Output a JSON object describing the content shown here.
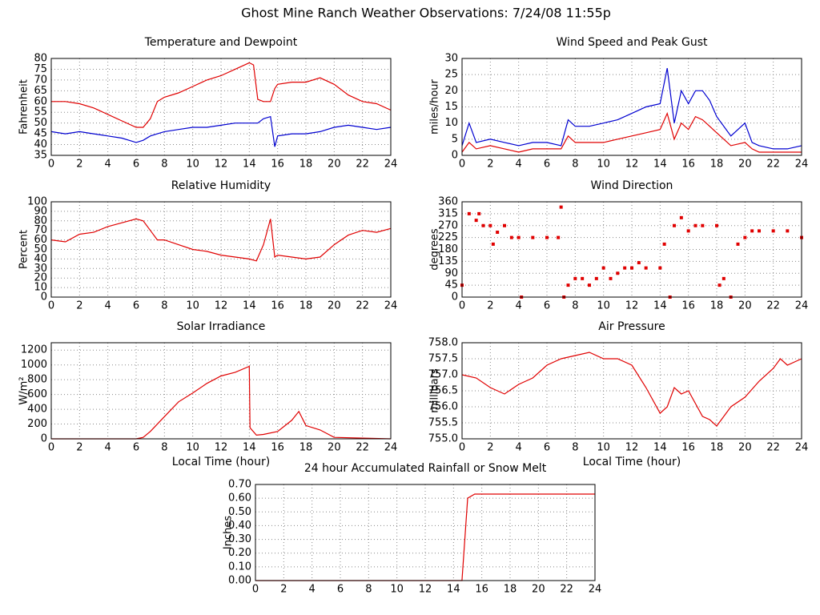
{
  "title": "Ghost Mine Ranch Weather Observations: 7/24/08 11:55p",
  "chart_data": [
    {
      "type": "line",
      "title": "Temperature and Dewpoint",
      "ylabel": "Fahrenheit",
      "x": [
        0,
        1,
        2,
        3,
        4,
        5,
        6,
        6.5,
        7,
        7.5,
        8,
        9,
        10,
        11,
        12,
        13,
        14,
        14.3,
        14.6,
        15,
        15.5,
        15.8,
        16,
        17,
        18,
        19,
        20,
        21,
        22,
        23,
        24
      ],
      "series": [
        {
          "color": "#e00000",
          "values": [
            60,
            60,
            59,
            57,
            54,
            51,
            48,
            48,
            52,
            60,
            62,
            64,
            67,
            70,
            72,
            75,
            78,
            77,
            61,
            60,
            60,
            66,
            68,
            69,
            69,
            71,
            68,
            63,
            60,
            59,
            56
          ]
        },
        {
          "color": "#0000d0",
          "values": [
            46,
            45,
            46,
            45,
            44,
            43,
            41,
            42,
            44,
            45,
            46,
            47,
            48,
            48,
            49,
            50,
            50,
            50,
            50,
            52,
            53,
            39,
            44,
            45,
            45,
            46,
            48,
            49,
            48,
            47,
            48
          ]
        }
      ],
      "xlim": [
        0,
        24
      ],
      "xticks": [
        0,
        2,
        4,
        6,
        8,
        10,
        12,
        14,
        16,
        18,
        20,
        22,
        24
      ],
      "ylim": [
        35,
        80
      ],
      "yticks": [
        35,
        40,
        45,
        50,
        55,
        60,
        65,
        70,
        75,
        80
      ],
      "grid": true
    },
    {
      "type": "line",
      "title": "Wind Speed and Peak Gust",
      "ylabel": "miles/hour",
      "x": [
        0,
        0.5,
        1,
        2,
        3,
        4,
        5,
        6,
        7,
        7.5,
        8,
        9,
        10,
        11,
        12,
        13,
        14,
        14.5,
        15,
        15.5,
        16,
        16.5,
        17,
        17.5,
        18,
        19,
        20,
        20.5,
        21,
        22,
        23,
        24
      ],
      "series": [
        {
          "color": "#0000d0",
          "values": [
            3,
            10,
            4,
            5,
            4,
            3,
            4,
            4,
            3,
            11,
            9,
            9,
            10,
            11,
            13,
            15,
            16,
            27,
            10,
            20,
            16,
            20,
            20,
            17,
            12,
            6,
            10,
            4,
            3,
            2,
            2,
            3
          ]
        },
        {
          "color": "#e00000",
          "values": [
            1,
            4,
            2,
            3,
            2,
            1,
            2,
            2,
            2,
            6,
            4,
            4,
            4,
            5,
            6,
            7,
            8,
            13,
            5,
            10,
            8,
            12,
            11,
            9,
            7,
            3,
            4,
            2,
            1,
            1,
            1,
            1
          ]
        }
      ],
      "xlim": [
        0,
        24
      ],
      "xticks": [
        0,
        2,
        4,
        6,
        8,
        10,
        12,
        14,
        16,
        18,
        20,
        22,
        24
      ],
      "ylim": [
        0,
        30
      ],
      "yticks": [
        0,
        5,
        10,
        15,
        20,
        25,
        30
      ],
      "grid": true
    },
    {
      "type": "line",
      "title": "Relative Humidity",
      "ylabel": "Percent",
      "x": [
        0,
        1,
        2,
        3,
        4,
        5,
        6,
        6.5,
        7,
        7.5,
        8,
        9,
        10,
        11,
        12,
        13,
        14,
        14.5,
        15,
        15.5,
        15.8,
        16,
        17,
        18,
        19,
        20,
        21,
        22,
        23,
        24
      ],
      "series": [
        {
          "color": "#e00000",
          "values": [
            60,
            58,
            66,
            68,
            74,
            78,
            82,
            80,
            70,
            60,
            60,
            55,
            50,
            48,
            44,
            42,
            40,
            38,
            55,
            82,
            42,
            44,
            42,
            40,
            42,
            55,
            65,
            70,
            68,
            72
          ]
        }
      ],
      "xlim": [
        0,
        24
      ],
      "xticks": [
        0,
        2,
        4,
        6,
        8,
        10,
        12,
        14,
        16,
        18,
        20,
        22,
        24
      ],
      "ylim": [
        0,
        100
      ],
      "yticks": [
        0,
        10,
        20,
        30,
        40,
        50,
        60,
        70,
        80,
        90,
        100
      ],
      "grid": true
    },
    {
      "type": "scatter",
      "title": "Wind Direction",
      "ylabel": "degrees",
      "color": "#e00000",
      "x": [
        0,
        0.5,
        1,
        1.2,
        1.5,
        2,
        2.2,
        2.5,
        3,
        3.5,
        4,
        4.2,
        5,
        6,
        6.8,
        7,
        7.2,
        7.5,
        8,
        8.5,
        9,
        9.5,
        10,
        10.5,
        11,
        11.5,
        12,
        12.5,
        13,
        14,
        14.3,
        14.7,
        15,
        15.5,
        16,
        16.5,
        17,
        18,
        18.2,
        18.5,
        19,
        19.5,
        20,
        20.5,
        21,
        22,
        23,
        24
      ],
      "values": [
        45,
        315,
        290,
        315,
        270,
        270,
        200,
        245,
        270,
        225,
        225,
        0,
        225,
        225,
        225,
        340,
        0,
        45,
        70,
        70,
        45,
        70,
        110,
        70,
        90,
        110,
        110,
        130,
        110,
        110,
        200,
        0,
        270,
        300,
        250,
        270,
        270,
        270,
        45,
        70,
        0,
        200,
        225,
        250,
        250,
        250,
        250,
        225
      ],
      "xlim": [
        0,
        24
      ],
      "xticks": [
        0,
        2,
        4,
        6,
        8,
        10,
        12,
        14,
        16,
        18,
        20,
        22,
        24
      ],
      "ylim": [
        0,
        360
      ],
      "yticks": [
        0,
        45,
        90,
        135,
        180,
        225,
        270,
        315,
        360
      ],
      "grid": true
    },
    {
      "type": "line",
      "title": "Solar Irradiance",
      "ylabel": "W/m²",
      "xlabel": "Local Time (hour)",
      "x": [
        0,
        6,
        6.5,
        7,
        8,
        9,
        10,
        11,
        12,
        13,
        14,
        14.05,
        14.5,
        15,
        16,
        17,
        17.5,
        18,
        19,
        20,
        24
      ],
      "series": [
        {
          "color": "#e00000",
          "values": [
            0,
            0,
            20,
            100,
            300,
            500,
            620,
            750,
            850,
            900,
            980,
            150,
            50,
            60,
            100,
            250,
            370,
            180,
            120,
            20,
            0
          ]
        }
      ],
      "xlim": [
        0,
        24
      ],
      "xticks": [
        0,
        2,
        4,
        6,
        8,
        10,
        12,
        14,
        16,
        18,
        20,
        22,
        24
      ],
      "ylim": [
        0,
        1300
      ],
      "yticks": [
        0,
        200,
        400,
        600,
        800,
        1000,
        1200
      ],
      "grid": true
    },
    {
      "type": "line",
      "title": "Air Pressure",
      "ylabel": "millibars",
      "xlabel": "Local Time (hour)",
      "x": [
        0,
        1,
        2,
        3,
        4,
        5,
        6,
        7,
        8,
        9,
        10,
        11,
        12,
        13,
        14,
        14.5,
        15,
        15.5,
        16,
        17,
        17.5,
        18,
        19,
        20,
        21,
        22,
        22.5,
        23,
        24
      ],
      "series": [
        {
          "color": "#e00000",
          "values": [
            757.0,
            756.9,
            756.6,
            756.4,
            756.7,
            756.9,
            757.3,
            757.5,
            757.6,
            757.7,
            757.5,
            757.5,
            757.3,
            756.6,
            755.8,
            756.0,
            756.6,
            756.4,
            756.5,
            755.7,
            755.6,
            755.4,
            756.0,
            756.3,
            756.8,
            757.2,
            757.5,
            757.3,
            757.5
          ]
        }
      ],
      "xlim": [
        0,
        24
      ],
      "xticks": [
        0,
        2,
        4,
        6,
        8,
        10,
        12,
        14,
        16,
        18,
        20,
        22,
        24
      ],
      "ylim": [
        755,
        758
      ],
      "yticks": [
        {
          "value": 755,
          "label": "755.0"
        },
        {
          "value": 755.5,
          "label": "755.5"
        },
        {
          "value": 756,
          "label": "756.0"
        },
        {
          "value": 756.5,
          "label": "756.5"
        },
        {
          "value": 757,
          "label": "757.0"
        },
        {
          "value": 757.5,
          "label": "757.5"
        },
        {
          "value": 758,
          "label": "758.0"
        }
      ],
      "grid": true
    },
    {
      "type": "line",
      "title": "24 hour Accumulated Rainfall or Snow Melt",
      "ylabel": "Inches",
      "x": [
        0,
        14.6,
        15,
        15.5,
        24
      ],
      "series": [
        {
          "color": "#e00000",
          "values": [
            0,
            0,
            0.6,
            0.63,
            0.63
          ]
        }
      ],
      "xlim": [
        0,
        24
      ],
      "xticks": [
        0,
        2,
        4,
        6,
        8,
        10,
        12,
        14,
        16,
        18,
        20,
        22,
        24
      ],
      "ylim": [
        0,
        0.7
      ],
      "yticks": [
        {
          "value": 0,
          "label": "0.00"
        },
        {
          "value": 0.1,
          "label": "0.10"
        },
        {
          "value": 0.2,
          "label": "0.20"
        },
        {
          "value": 0.3,
          "label": "0.30"
        },
        {
          "value": 0.4,
          "label": "0.40"
        },
        {
          "value": 0.5,
          "label": "0.50"
        },
        {
          "value": 0.6,
          "label": "0.60"
        },
        {
          "value": 0.7,
          "label": "0.70"
        }
      ],
      "grid": true
    }
  ]
}
